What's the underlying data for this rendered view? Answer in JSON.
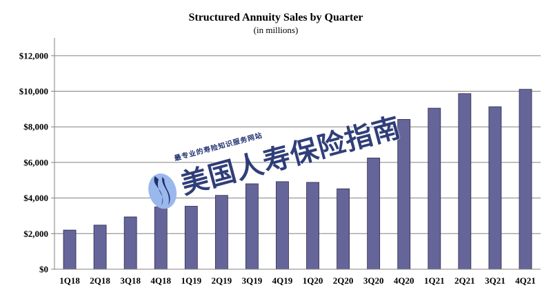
{
  "chart_data": {
    "type": "bar",
    "title": "Structured Annuity Sales by Quarter",
    "subtitle": "(in millions)",
    "categories": [
      "1Q18",
      "2Q18",
      "3Q18",
      "4Q18",
      "1Q19",
      "2Q19",
      "3Q19",
      "4Q19",
      "1Q20",
      "2Q20",
      "3Q20",
      "4Q20",
      "1Q21",
      "2Q21",
      "3Q21",
      "4Q21"
    ],
    "values": [
      2200,
      2480,
      2940,
      3500,
      3540,
      4150,
      4800,
      4920,
      4880,
      4520,
      6250,
      8420,
      9050,
      9870,
      9130,
      10110
    ],
    "y_ticks": [
      "$0",
      "$2,000",
      "$4,000",
      "$6,000",
      "$8,000",
      "$10,000",
      "$12,000"
    ],
    "ylim": [
      0,
      13000
    ],
    "grid": true,
    "bar_color": "#66659a"
  },
  "watermark": {
    "small_text": "最专业的寿险知识服务网站",
    "big_text": "美国人寿保险指南",
    "logo_icon": "flame-logo-icon",
    "color": "#1f2f6e"
  }
}
